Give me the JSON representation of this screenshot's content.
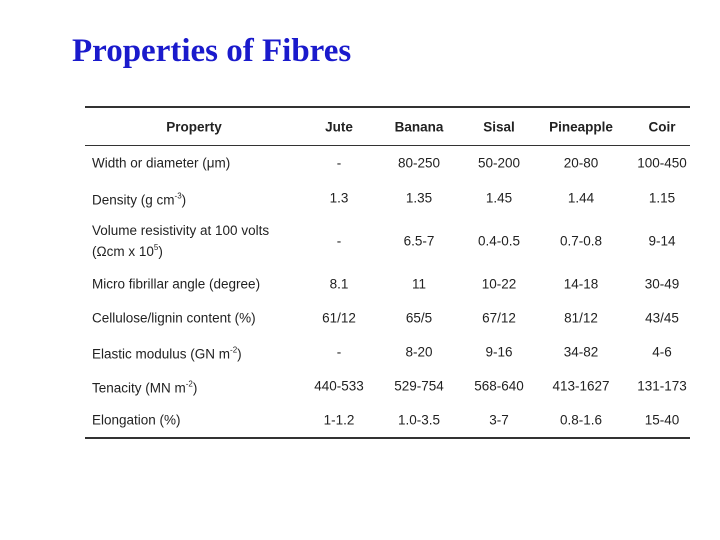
{
  "header": {
    "title": "Properties of Fibres"
  },
  "table": {
    "columns": [
      "Property",
      "Jute",
      "Banana",
      "Sisal",
      "Pineapple",
      "Coir"
    ],
    "rows": [
      {
        "property": [
          [
            {
              "t": "Width or diameter (μm)"
            }
          ]
        ],
        "values": [
          "-",
          "80-250",
          "50-200",
          "20-80",
          "100-450"
        ]
      },
      {
        "property": [
          [
            {
              "t": "Density (g cm"
            },
            {
              "sup": "-3"
            },
            {
              "t": ")"
            }
          ]
        ],
        "values": [
          "1.3",
          "1.35",
          "1.45",
          "1.44",
          "1.15"
        ]
      },
      {
        "property": [
          [
            {
              "t": "Volume resistivity at 100 volts"
            }
          ],
          [
            {
              "t": "(Ωcm x 10"
            },
            {
              "sup": "5"
            },
            {
              "t": ")"
            }
          ]
        ],
        "values": [
          "-",
          "6.5-7",
          "0.4-0.5",
          "0.7-0.8",
          "9-14"
        ]
      },
      {
        "property": [
          [
            {
              "t": "Micro fibrillar angle (degree)"
            }
          ]
        ],
        "values": [
          "8.1",
          "11",
          "10-22",
          "14-18",
          "30-49"
        ]
      },
      {
        "property": [
          [
            {
              "t": "Cellulose/lignin content (%)"
            }
          ]
        ],
        "values": [
          "61/12",
          "65/5",
          "67/12",
          "81/12",
          "43/45"
        ]
      },
      {
        "property": [
          [
            {
              "t": "Elastic modulus (GN m"
            },
            {
              "sup": "-2"
            },
            {
              "t": ")"
            }
          ]
        ],
        "values": [
          "-",
          "8-20",
          "9-16",
          "34-82",
          "4-6"
        ]
      },
      {
        "property": [
          [
            {
              "t": "Tenacity (MN m"
            },
            {
              "sup": "-2"
            },
            {
              "t": ")"
            }
          ]
        ],
        "values": [
          "440-533",
          "529-754",
          "568-640",
          "413-1627",
          "131-173"
        ]
      },
      {
        "property": [
          [
            {
              "t": "Elongation (%)"
            }
          ]
        ],
        "values": [
          "1-1.2",
          "1.0-3.5",
          "3-7",
          "0.8-1.6",
          "15-40"
        ]
      }
    ]
  }
}
